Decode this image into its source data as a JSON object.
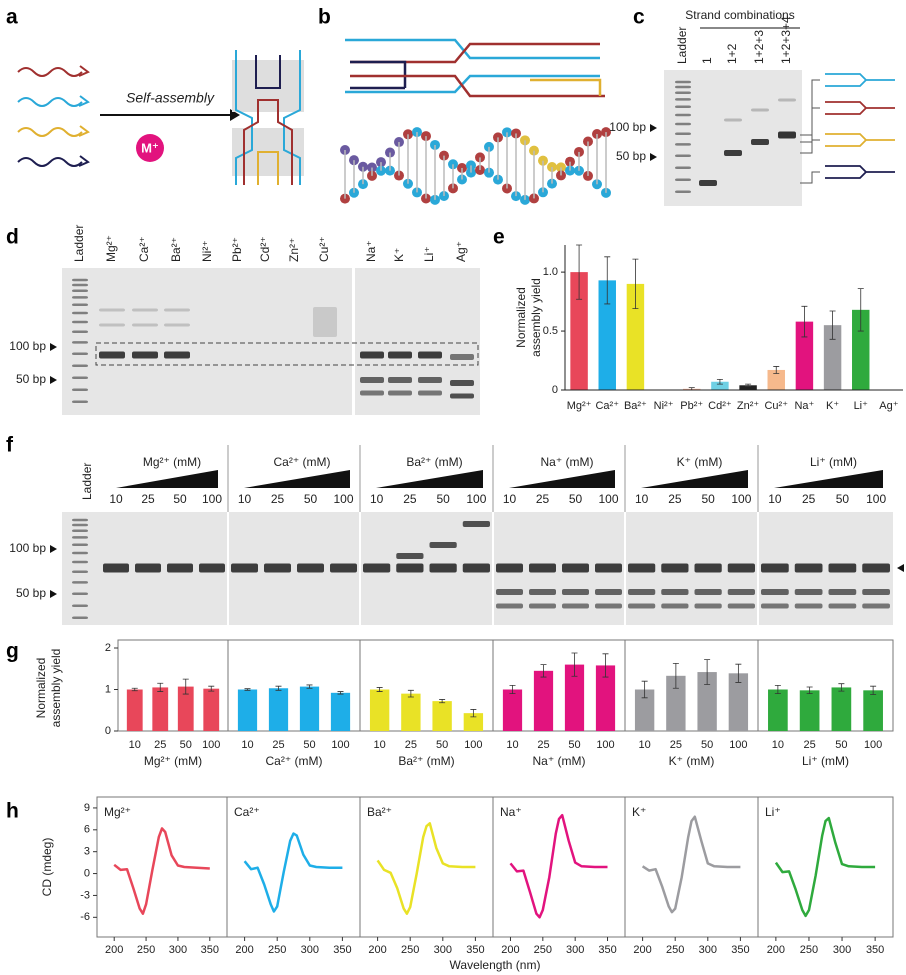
{
  "panel_labels": [
    "a",
    "b",
    "c",
    "d",
    "e",
    "f",
    "g",
    "h"
  ],
  "panel_a": {
    "process": "Self-assembly",
    "ion": "M⁺"
  },
  "panel_c": {
    "title": "Strand combinations",
    "lanes": [
      "Ladder",
      "1",
      "1+2",
      "1+2+3",
      "1+2+3+4"
    ],
    "markers": [
      "100 bp",
      "50 bp"
    ]
  },
  "panel_d": {
    "lanes": [
      "Ladder",
      "Mg²⁺",
      "Ca²⁺",
      "Ba²⁺",
      "Ni²⁺",
      "Pb²⁺",
      "Cd²⁺",
      "Zn²⁺",
      "Cu²⁺",
      "Na⁺",
      "K⁺",
      "Li⁺",
      "Ag⁺"
    ],
    "markers": [
      "100 bp",
      "50 bp"
    ]
  },
  "panel_f": {
    "ladder": "Ladder",
    "groups": [
      {
        "ion": "Mg²⁺ (mM)",
        "concentrations": [
          "10",
          "25",
          "50",
          "100"
        ]
      },
      {
        "ion": "Ca²⁺ (mM)",
        "concentrations": [
          "10",
          "25",
          "50",
          "100"
        ]
      },
      {
        "ion": "Ba²⁺ (mM)",
        "concentrations": [
          "10",
          "25",
          "50",
          "100"
        ]
      },
      {
        "ion": "Na⁺ (mM)",
        "concentrations": [
          "10",
          "25",
          "50",
          "100"
        ]
      },
      {
        "ion": "K⁺ (mM)",
        "concentrations": [
          "10",
          "25",
          "50",
          "100"
        ]
      },
      {
        "ion": "Li⁺ (mM)",
        "concentrations": [
          "10",
          "25",
          "50",
          "100"
        ]
      }
    ],
    "markers": [
      "100 bp",
      "50 bp"
    ]
  },
  "chart_data": [
    {
      "type": "bar",
      "ylabel": [
        "Normalized",
        "assembly yield"
      ],
      "categories": [
        "Mg²⁺",
        "Ca²⁺",
        "Ba²⁺",
        "Ni²⁺",
        "Pb²⁺",
        "Cd²⁺",
        "Zn²⁺",
        "Cu²⁺",
        "Na⁺",
        "K⁺",
        "Li⁺",
        "Ag⁺"
      ],
      "values": [
        1.0,
        0.93,
        0.9,
        0,
        0.01,
        0.07,
        0.04,
        0.17,
        0.58,
        0.55,
        0.68,
        0
      ],
      "errors": [
        0.23,
        0.2,
        0.21,
        0,
        0.01,
        0.02,
        0.01,
        0.03,
        0.13,
        0.12,
        0.18,
        0
      ],
      "colors": [
        "#e8475a",
        "#1eaee8",
        "#e9e226",
        null,
        "#f7b19a",
        "#6fd0e4",
        "#222222",
        "#f6b98c",
        "#e2137e",
        "#9c9ca0",
        "#2faa3d",
        null
      ],
      "ylim": [
        0,
        1.23
      ],
      "yticks": [
        0,
        0.5,
        {
          "value": 1,
          "label": "1.0"
        }
      ]
    },
    {
      "type": "bar",
      "ylabel": [
        "Normalized",
        "assembly yield"
      ],
      "xlabel": "Mg²⁺ (mM)",
      "categories": [
        "10",
        "25",
        "50",
        "100"
      ],
      "values": [
        1.0,
        1.05,
        1.07,
        1.02
      ],
      "errors": [
        0.03,
        0.1,
        0.18,
        0.06
      ],
      "color": "#e8475a",
      "ylim": [
        0,
        2
      ],
      "yticks": [
        0,
        1,
        2
      ]
    },
    {
      "type": "bar",
      "xlabel": "Ca²⁺ (mM)",
      "categories": [
        "10",
        "25",
        "50",
        "100"
      ],
      "values": [
        1.0,
        1.03,
        1.07,
        0.92
      ],
      "errors": [
        0.02,
        0.05,
        0.04,
        0.03
      ],
      "color": "#1eaee8",
      "ylim": [
        0,
        2
      ]
    },
    {
      "type": "bar",
      "xlabel": "Ba²⁺ (mM)",
      "categories": [
        "10",
        "25",
        "50",
        "100"
      ],
      "values": [
        1.0,
        0.9,
        0.72,
        0.43
      ],
      "errors": [
        0.05,
        0.08,
        0.04,
        0.09
      ],
      "color": "#e9e226",
      "ylim": [
        0,
        2
      ]
    },
    {
      "type": "bar",
      "xlabel": "Na⁺ (mM)",
      "categories": [
        "10",
        "25",
        "50",
        "100"
      ],
      "values": [
        1.0,
        1.45,
        1.6,
        1.58
      ],
      "errors": [
        0.1,
        0.15,
        0.28,
        0.28
      ],
      "color": "#e2137e",
      "ylim": [
        0,
        2
      ]
    },
    {
      "type": "bar",
      "xlabel": "K⁺ (mM)",
      "categories": [
        "10",
        "25",
        "50",
        "100"
      ],
      "values": [
        1.0,
        1.33,
        1.42,
        1.39
      ],
      "errors": [
        0.2,
        0.3,
        0.3,
        0.22
      ],
      "color": "#9c9ca0",
      "ylim": [
        0,
        2
      ]
    },
    {
      "type": "bar",
      "xlabel": "Li⁺ (mM)",
      "categories": [
        "10",
        "25",
        "50",
        "100"
      ],
      "values": [
        1.0,
        0.98,
        1.05,
        0.98
      ],
      "errors": [
        0.1,
        0.08,
        0.09,
        0.1
      ],
      "color": "#2faa3d",
      "ylim": [
        0,
        2
      ]
    },
    {
      "type": "line",
      "annotation": "Mg²⁺",
      "ylabel": "CD (mdeg)",
      "xlabel": "Wavelength (nm)",
      "x": [
        200,
        210,
        220,
        230,
        240,
        245,
        250,
        260,
        270,
        275,
        280,
        290,
        300,
        310,
        330,
        350
      ],
      "values": [
        1.2,
        0.5,
        0.6,
        -2,
        -4.8,
        -5.5,
        -4.2,
        0.5,
        5,
        6.2,
        5.7,
        2.5,
        1.1,
        0.9,
        0.8,
        0.7
      ],
      "color": "#e8475a",
      "xlim": [
        173,
        377
      ],
      "xticks": [
        200,
        250,
        300,
        350
      ],
      "ylim": [
        -8.7,
        10.5
      ],
      "yticks": [
        -6,
        -3,
        0,
        3,
        6,
        9
      ]
    },
    {
      "type": "line",
      "annotation": "Ca²⁺",
      "x": [
        200,
        210,
        220,
        230,
        240,
        245,
        250,
        260,
        270,
        275,
        280,
        290,
        300,
        310,
        330,
        350
      ],
      "values": [
        1.7,
        0.6,
        0.8,
        -1.5,
        -4.2,
        -5.2,
        -4.5,
        0.2,
        4.5,
        5.5,
        5.2,
        2.6,
        1.1,
        0.9,
        0.8,
        0.8
      ],
      "color": "#1eaee8",
      "xlim": [
        173,
        377
      ],
      "xticks": [
        200,
        250,
        300,
        350
      ],
      "ylim": [
        -8.7,
        10.5
      ]
    },
    {
      "type": "line",
      "annotation": "Ba²⁺",
      "x": [
        200,
        210,
        220,
        230,
        240,
        245,
        250,
        260,
        270,
        275,
        280,
        290,
        300,
        310,
        330,
        350
      ],
      "values": [
        1.8,
        0.5,
        0.1,
        -2,
        -4.8,
        -5.5,
        -4.6,
        0,
        5,
        6.5,
        6.9,
        3.5,
        1.4,
        1.0,
        0.9,
        0.9
      ],
      "color": "#e9e226",
      "xlim": [
        173,
        377
      ],
      "xticks": [
        200,
        250,
        300,
        350
      ],
      "ylim": [
        -8.7,
        10.5
      ]
    },
    {
      "type": "line",
      "annotation": "Na⁺",
      "x": [
        200,
        210,
        220,
        230,
        240,
        245,
        250,
        260,
        270,
        275,
        280,
        290,
        300,
        310,
        330,
        350
      ],
      "values": [
        1.4,
        0.3,
        0.4,
        -2.5,
        -5.5,
        -6,
        -5,
        -0.5,
        5.5,
        7.5,
        8,
        4.5,
        1.5,
        1.0,
        0.9,
        0.9
      ],
      "color": "#e2137e",
      "xlim": [
        173,
        377
      ],
      "xticks": [
        200,
        250,
        300,
        350
      ],
      "ylim": [
        -8.7,
        10.5
      ]
    },
    {
      "type": "line",
      "annotation": "K⁺",
      "x": [
        200,
        210,
        220,
        230,
        240,
        245,
        250,
        260,
        270,
        275,
        280,
        290,
        300,
        310,
        330,
        350
      ],
      "values": [
        1,
        0.4,
        0.6,
        -1.8,
        -4.5,
        -5.3,
        -4.8,
        -0.5,
        5,
        7.2,
        7.8,
        4.5,
        1.4,
        1.0,
        0.9,
        0.9
      ],
      "color": "#9c9ca0",
      "xlim": [
        173,
        377
      ],
      "xticks": [
        200,
        250,
        300,
        350
      ],
      "ylim": [
        -8.7,
        10.5
      ]
    },
    {
      "type": "line",
      "annotation": "Li⁺",
      "x": [
        200,
        210,
        220,
        230,
        240,
        245,
        250,
        260,
        270,
        275,
        280,
        290,
        300,
        310,
        330,
        350
      ],
      "values": [
        1.5,
        0.2,
        0.3,
        -2.2,
        -5,
        -5.8,
        -5,
        -0.3,
        5.2,
        7.2,
        7.6,
        4.2,
        1.3,
        1.0,
        0.9,
        0.9
      ],
      "color": "#2faa3d",
      "xlim": [
        173,
        377
      ],
      "xticks": [
        200,
        250,
        300,
        350
      ],
      "ylim": [
        -8.7,
        10.5
      ]
    }
  ]
}
